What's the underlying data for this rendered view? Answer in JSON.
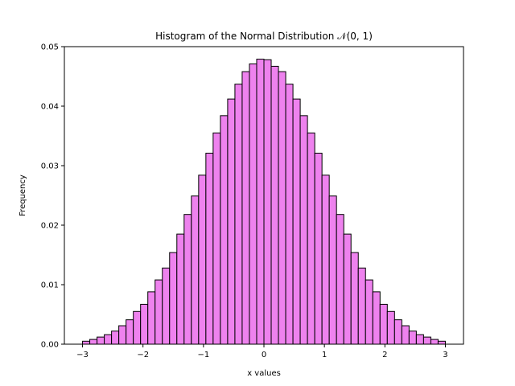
{
  "chart_data": {
    "type": "bar",
    "title": "Histogram of the Normal Distribution 𝒩(0, 1)",
    "xlabel": "x values",
    "ylabel": "Frequency",
    "xlim": [
      -3.3,
      3.3
    ],
    "ylim": [
      0,
      0.05
    ],
    "xticks": [
      -3,
      -2,
      -1,
      0,
      1,
      2,
      3
    ],
    "xtick_labels": [
      "−3",
      "−2",
      "−1",
      "0",
      "1",
      "2",
      "3"
    ],
    "yticks": [
      0,
      0.01,
      0.02,
      0.03,
      0.04,
      0.05
    ],
    "ytick_labels": [
      "0.00",
      "0.01",
      "0.02",
      "0.03",
      "0.04",
      "0.05"
    ],
    "bins": {
      "start": -3,
      "end": 3,
      "count": 50
    },
    "values": [
      0.0005,
      0.0008,
      0.0012,
      0.0016,
      0.0022,
      0.0031,
      0.0041,
      0.0055,
      0.0067,
      0.0088,
      0.0108,
      0.0128,
      0.0154,
      0.0185,
      0.0218,
      0.0249,
      0.0284,
      0.0321,
      0.0355,
      0.0384,
      0.0412,
      0.0437,
      0.0458,
      0.0471,
      0.0479,
      0.0478,
      0.0467,
      0.0458,
      0.0437,
      0.0412,
      0.0384,
      0.0355,
      0.0321,
      0.0284,
      0.0249,
      0.0218,
      0.0185,
      0.0154,
      0.0128,
      0.0108,
      0.0088,
      0.0067,
      0.0055,
      0.0041,
      0.0031,
      0.0022,
      0.0016,
      0.0012,
      0.0008,
      0.0005
    ],
    "bar_color": "#EE82EE",
    "edge_color": "#000000",
    "grid": false
  }
}
